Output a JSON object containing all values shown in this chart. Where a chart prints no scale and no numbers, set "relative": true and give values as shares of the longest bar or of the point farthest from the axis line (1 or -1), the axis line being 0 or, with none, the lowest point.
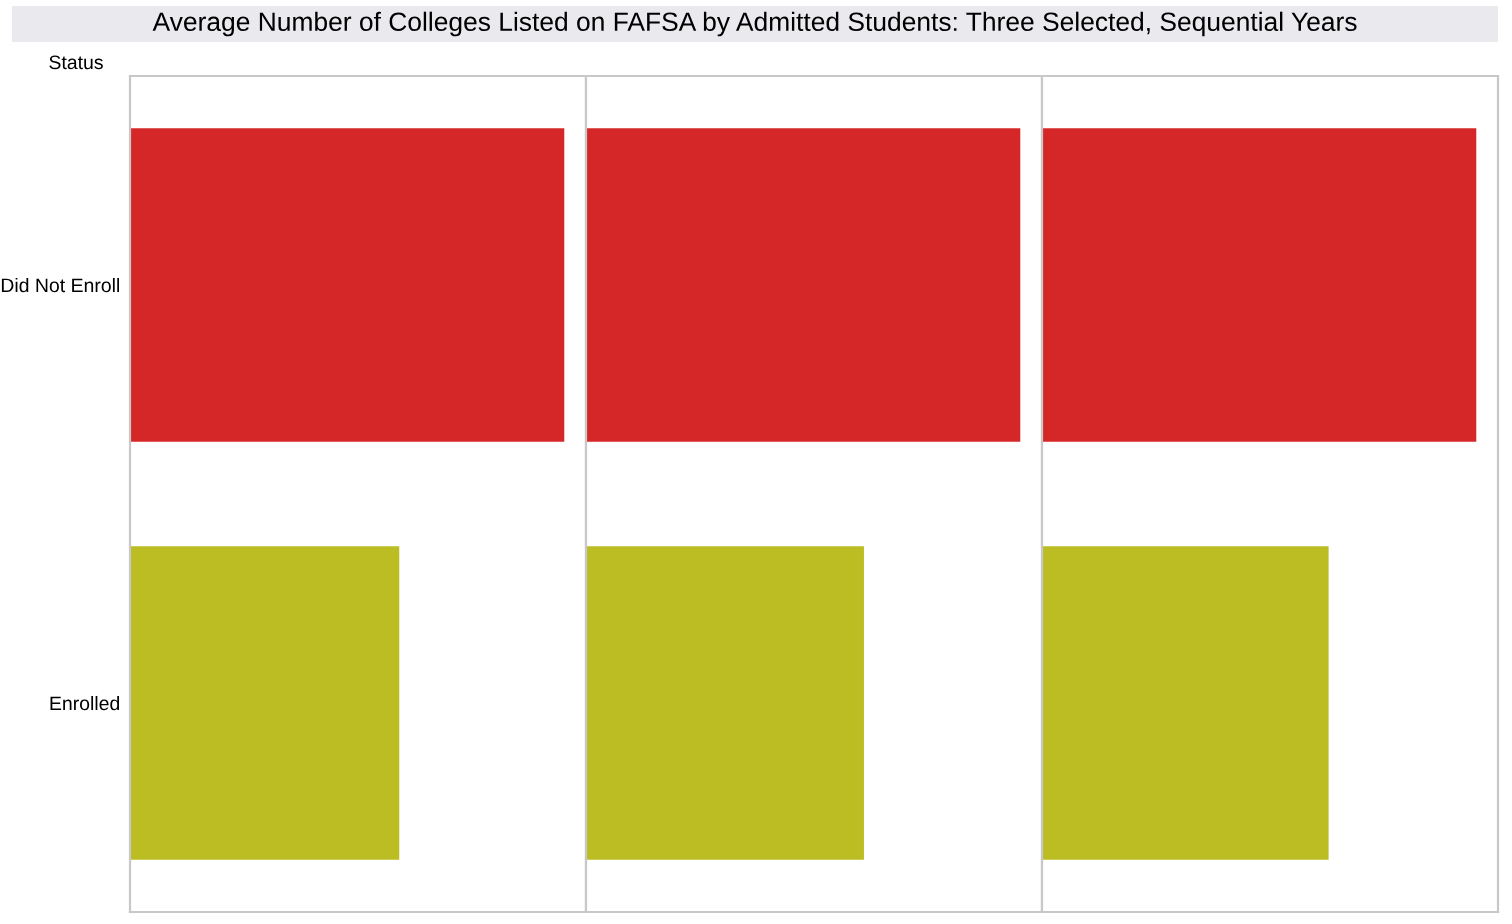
{
  "chart_data": [
    {
      "type": "bar",
      "orientation": "horizontal",
      "relative": true,
      "title": "Average Number of Colleges Listed on FAFSA by Admitted Students: Three Selected, Sequential Years",
      "ylabel": "Status",
      "categories": [
        "Did Not Enroll",
        "Enrolled"
      ],
      "values": [
        1,
        0.62
      ],
      "colors": [
        "#d62728",
        "#bcbd22"
      ],
      "tick_labels": "y",
      "grid": false
    },
    {
      "type": "bar",
      "orientation": "horizontal",
      "relative": true,
      "categories": [
        null,
        null
      ],
      "values": [
        1,
        0.64
      ],
      "colors": [
        "#d62728",
        "#bcbd22"
      ],
      "tick_labels": false,
      "grid": false
    },
    {
      "type": "bar",
      "orientation": "horizontal",
      "relative": true,
      "categories": [
        null,
        null
      ],
      "values": [
        1,
        0.66
      ],
      "colors": [
        "#d62728",
        "#bcbd22"
      ],
      "tick_labels": false,
      "grid": false
    }
  ]
}
